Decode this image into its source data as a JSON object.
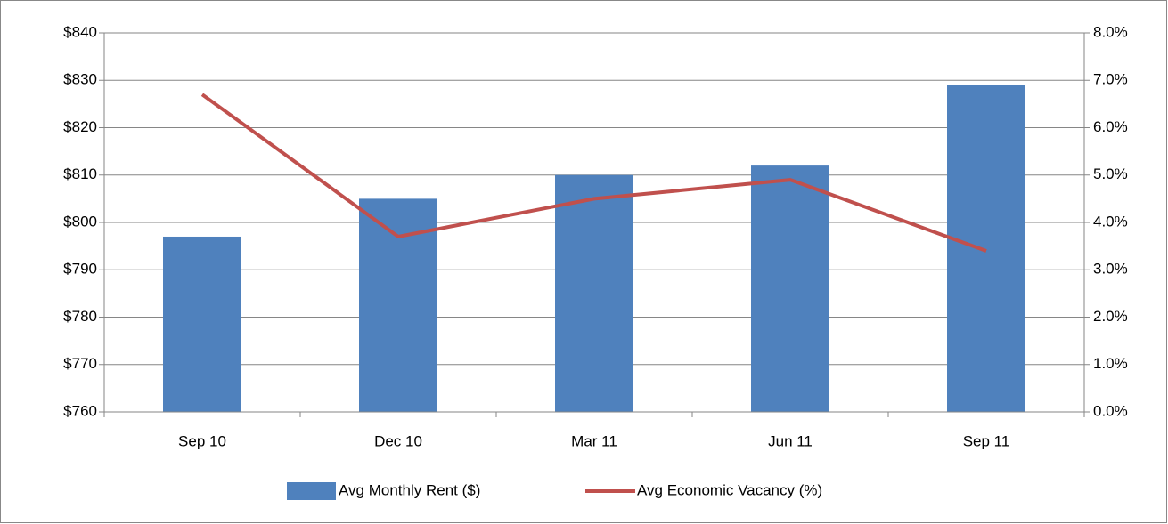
{
  "chart_data": {
    "type": "bar",
    "categories": [
      "Sep 10",
      "Dec 10",
      "Mar 11",
      "Jun 11",
      "Sep 11"
    ],
    "series": [
      {
        "name": "Avg Monthly Rent ($)",
        "color": "#4f81bd",
        "type": "bar",
        "values": [
          797,
          805,
          810,
          812,
          829
        ]
      },
      {
        "name": "Avg Economic Vacancy (%)",
        "color": "#c0504d",
        "type": "line",
        "axis": "y2",
        "values": [
          6.7,
          3.7,
          4.5,
          4.9,
          3.4
        ]
      }
    ],
    "ylim": [
      760,
      840
    ],
    "yticks": [
      {
        "value": 760,
        "label": "$760"
      },
      {
        "value": 770,
        "label": "$770"
      },
      {
        "value": 780,
        "label": "$780"
      },
      {
        "value": 790,
        "label": "$790"
      },
      {
        "value": 800,
        "label": "$800"
      },
      {
        "value": 810,
        "label": "$810"
      },
      {
        "value": 820,
        "label": "$820"
      },
      {
        "value": 830,
        "label": "$830"
      },
      {
        "value": 840,
        "label": "$840"
      }
    ],
    "y2lim": [
      0,
      8
    ],
    "y2ticks": [
      {
        "value": 0,
        "label": "0.0%"
      },
      {
        "value": 1,
        "label": "1.0%"
      },
      {
        "value": 2,
        "label": "2.0%"
      },
      {
        "value": 3,
        "label": "3.0%"
      },
      {
        "value": 4,
        "label": "4.0%"
      },
      {
        "value": 5,
        "label": "5.0%"
      },
      {
        "value": 6,
        "label": "6.0%"
      },
      {
        "value": 7,
        "label": "7.0%"
      },
      {
        "value": 8,
        "label": "8.0%"
      }
    ],
    "grid": true,
    "legend": "bottom"
  }
}
